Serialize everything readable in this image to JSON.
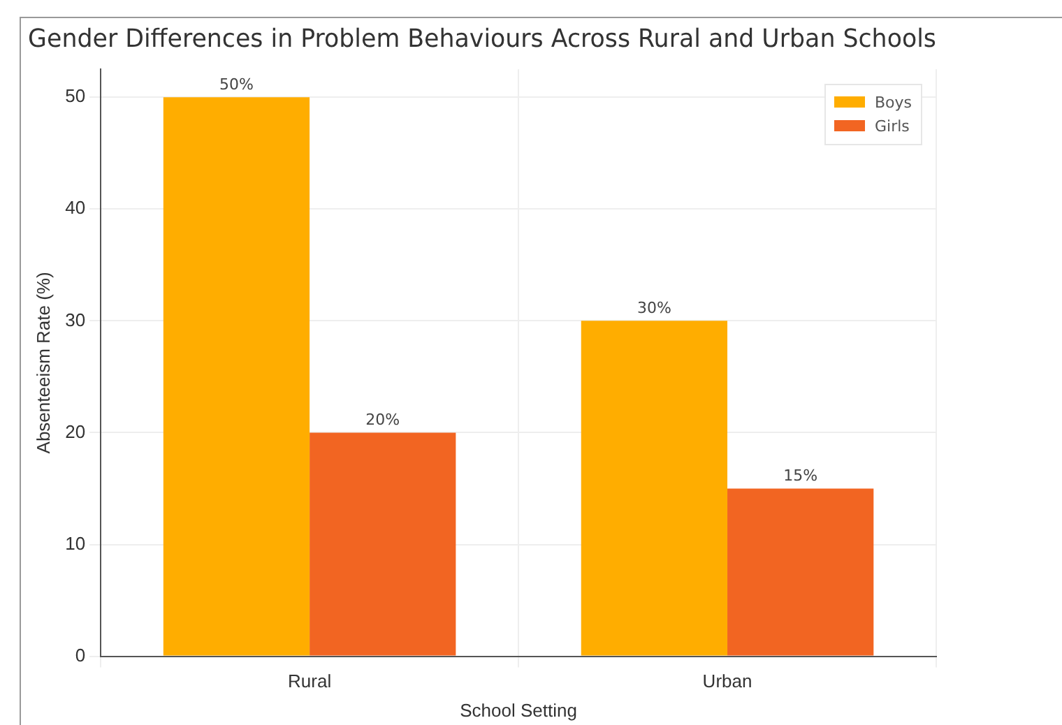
{
  "chart_data": {
    "type": "bar",
    "title": "Gender Differences in Problem Behaviours Across Rural and Urban Schools",
    "xlabel": "School Setting",
    "ylabel": "Absenteeism Rate (%)",
    "categories": [
      "Rural",
      "Urban"
    ],
    "series": [
      {
        "name": "Boys",
        "color": "#ffad00",
        "values": [
          50,
          30
        ],
        "value_labels": [
          "50%",
          "30%"
        ]
      },
      {
        "name": "Girls",
        "color": "#f26522",
        "values": [
          20,
          15
        ],
        "value_labels": [
          "20%",
          "15%"
        ]
      }
    ],
    "ylim": [
      0,
      52.5
    ],
    "yticks": [
      0,
      10,
      20,
      30,
      40,
      50
    ],
    "grid": true,
    "legend": "top right"
  }
}
